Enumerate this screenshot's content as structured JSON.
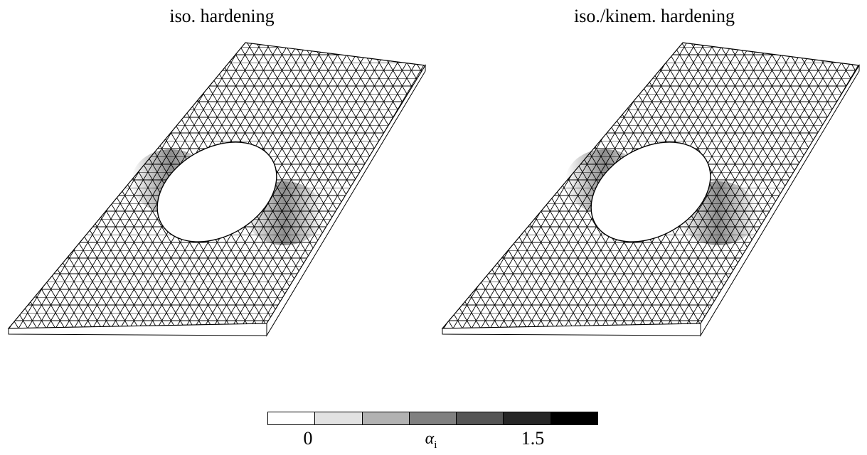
{
  "panels": [
    {
      "title": "iso. hardening"
    },
    {
      "title": "iso./kinem. hardening"
    }
  ],
  "colorbar": {
    "min_label": "0",
    "max_label": "1.5",
    "symbol": "α",
    "symbol_subscript": "i",
    "swatches": [
      "#ffffff",
      "#e2e2e2",
      "#b2b2b2",
      "#808080",
      "#555555",
      "#262626",
      "#000000"
    ]
  }
}
